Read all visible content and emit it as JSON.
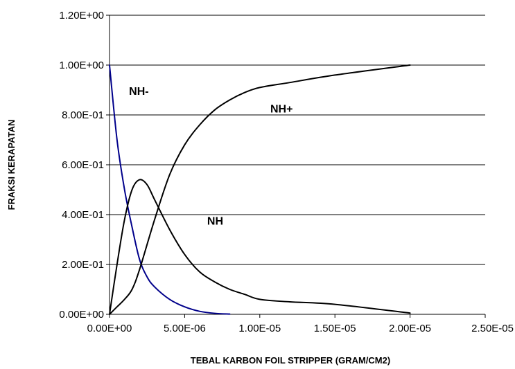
{
  "chart_data": {
    "type": "line",
    "title": "",
    "xlabel": "TEBAL KARBON FOIL STRIPPER (GRAM/CM2)",
    "ylabel": "FRAKSI KERAPATAN",
    "xlim": [
      0,
      2.5e-05
    ],
    "ylim": [
      0,
      1.2
    ],
    "grid": true,
    "x_ticks": [
      {
        "value": 0,
        "label": "0.00E+00"
      },
      {
        "value": 5e-06,
        "label": "5.00E-06"
      },
      {
        "value": 1e-05,
        "label": "1.00E-05"
      },
      {
        "value": 1.5e-05,
        "label": "1.50E-05"
      },
      {
        "value": 2e-05,
        "label": "2.00E-05"
      },
      {
        "value": 2.5e-05,
        "label": "2.50E-05"
      }
    ],
    "y_ticks": [
      {
        "value": 0,
        "label": "0.00E+00"
      },
      {
        "value": 0.2,
        "label": "2.00E-01"
      },
      {
        "value": 0.4,
        "label": "4.00E-01"
      },
      {
        "value": 0.6,
        "label": "6.00E-01"
      },
      {
        "value": 0.8,
        "label": "8.00E-01"
      },
      {
        "value": 1.0,
        "label": "1.00E+00"
      },
      {
        "value": 1.2,
        "label": "1.20E+00"
      }
    ],
    "series": [
      {
        "name": "NH-",
        "color": "#00008b",
        "label_at": [
          1.3e-06,
          0.88
        ],
        "points": [
          [
            0,
            1.0
          ],
          [
            5e-07,
            0.7
          ],
          [
            1e-06,
            0.5
          ],
          [
            1.5e-06,
            0.35
          ],
          [
            2e-06,
            0.22
          ],
          [
            2.5e-06,
            0.15
          ],
          [
            3e-06,
            0.11
          ],
          [
            4e-06,
            0.06
          ],
          [
            5e-06,
            0.03
          ],
          [
            6e-06,
            0.012
          ],
          [
            7e-06,
            0.004
          ],
          [
            8e-06,
            0.001
          ]
        ]
      },
      {
        "name": "NH",
        "color": "#000000",
        "label_at": [
          6.5e-06,
          0.36
        ],
        "points": [
          [
            0,
            0.0
          ],
          [
            5e-07,
            0.2
          ],
          [
            1e-06,
            0.38
          ],
          [
            1.5e-06,
            0.5
          ],
          [
            2e-06,
            0.54
          ],
          [
            2.5e-06,
            0.52
          ],
          [
            3e-06,
            0.46
          ],
          [
            4e-06,
            0.34
          ],
          [
            5e-06,
            0.24
          ],
          [
            6e-06,
            0.17
          ],
          [
            7e-06,
            0.13
          ],
          [
            8e-06,
            0.1
          ],
          [
            9e-06,
            0.08
          ],
          [
            1e-05,
            0.06
          ],
          [
            1.2e-05,
            0.05
          ],
          [
            1.5e-05,
            0.04
          ],
          [
            2e-05,
            0.005
          ]
        ]
      },
      {
        "name": "NH+",
        "color": "#000000",
        "label_at": [
          1.07e-05,
          0.81
        ],
        "points": [
          [
            0,
            0.0
          ],
          [
            5e-07,
            0.03
          ],
          [
            1e-06,
            0.06
          ],
          [
            1.5e-06,
            0.1
          ],
          [
            2e-06,
            0.18
          ],
          [
            3e-06,
            0.38
          ],
          [
            4e-06,
            0.56
          ],
          [
            5e-06,
            0.68
          ],
          [
            6e-06,
            0.76
          ],
          [
            7e-06,
            0.82
          ],
          [
            8e-06,
            0.86
          ],
          [
            9e-06,
            0.89
          ],
          [
            1e-05,
            0.91
          ],
          [
            1.2e-05,
            0.93
          ],
          [
            1.5e-05,
            0.96
          ],
          [
            2e-05,
            1.0
          ]
        ]
      }
    ]
  }
}
